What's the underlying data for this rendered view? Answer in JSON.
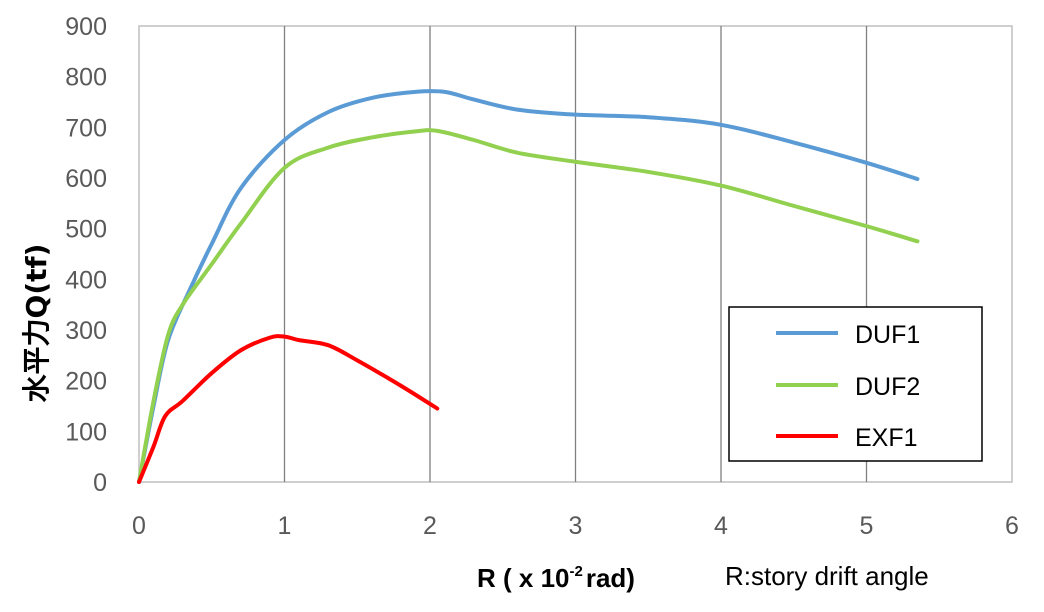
{
  "chart_data": {
    "type": "line",
    "xlabel_main": "R ( x 10",
    "xlabel_exp": "-2",
    "xlabel_unit": "rad)",
    "xlabel_note": "R:story drift angle",
    "ylabel": "水平力Q(tf)",
    "xlim": [
      0,
      6
    ],
    "ylim": [
      0,
      900
    ],
    "xticks": [
      "0",
      "1",
      "2",
      "3",
      "4",
      "5",
      "6"
    ],
    "yticks": [
      "0",
      "100",
      "200",
      "300",
      "400",
      "500",
      "600",
      "700",
      "800",
      "900"
    ],
    "grid": "vertical",
    "legend_position": "lower-right",
    "series": [
      {
        "name": "DUF1",
        "color": "#5B9BD5",
        "points": [
          [
            0,
            0
          ],
          [
            0.1,
            150
          ],
          [
            0.2,
            280
          ],
          [
            0.35,
            380
          ],
          [
            0.5,
            470
          ],
          [
            0.7,
            580
          ],
          [
            1.0,
            675
          ],
          [
            1.3,
            730
          ],
          [
            1.6,
            758
          ],
          [
            1.9,
            770
          ],
          [
            2.1,
            770
          ],
          [
            2.3,
            755
          ],
          [
            2.6,
            735
          ],
          [
            3.0,
            725
          ],
          [
            3.5,
            720
          ],
          [
            4.0,
            705
          ],
          [
            4.5,
            670
          ],
          [
            5.0,
            630
          ],
          [
            5.35,
            598
          ]
        ]
      },
      {
        "name": "DUF2",
        "color": "#92D050",
        "points": [
          [
            0,
            0
          ],
          [
            0.1,
            160
          ],
          [
            0.2,
            290
          ],
          [
            0.3,
            350
          ],
          [
            0.5,
            430
          ],
          [
            0.7,
            510
          ],
          [
            1.0,
            620
          ],
          [
            1.3,
            660
          ],
          [
            1.6,
            680
          ],
          [
            1.9,
            692
          ],
          [
            2.05,
            693
          ],
          [
            2.3,
            675
          ],
          [
            2.6,
            650
          ],
          [
            3.0,
            632
          ],
          [
            3.5,
            612
          ],
          [
            4.0,
            585
          ],
          [
            4.5,
            545
          ],
          [
            5.0,
            505
          ],
          [
            5.35,
            475
          ]
        ]
      },
      {
        "name": "EXF1",
        "color": "#FF0000",
        "points": [
          [
            0,
            0
          ],
          [
            0.1,
            70
          ],
          [
            0.18,
            130
          ],
          [
            0.3,
            160
          ],
          [
            0.5,
            215
          ],
          [
            0.7,
            260
          ],
          [
            0.9,
            285
          ],
          [
            1.0,
            287
          ],
          [
            1.1,
            280
          ],
          [
            1.3,
            270
          ],
          [
            1.5,
            240
          ],
          [
            1.8,
            190
          ],
          [
            2.05,
            145
          ]
        ]
      }
    ]
  }
}
